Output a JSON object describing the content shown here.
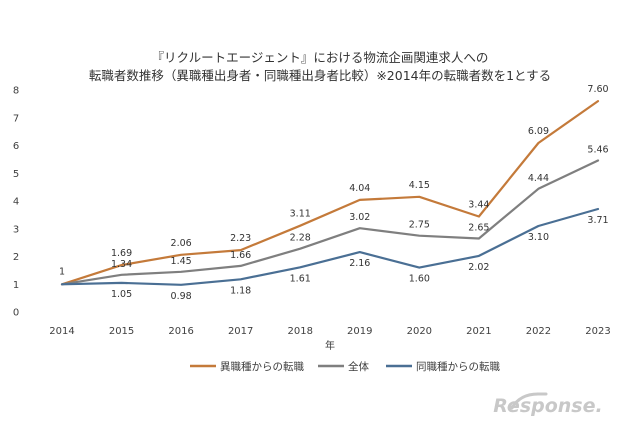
{
  "chart_data": {
    "type": "line",
    "title_lines": [
      "『リクルートエージェント』における物流企画関連求人への",
      "転職者数推移（異職種出身者・同職種出身者比較）※2014年の転職者数を1とする"
    ],
    "xlabel": "年",
    "ylabel": "",
    "x": [
      "2014",
      "2015",
      "2016",
      "2017",
      "2018",
      "2019",
      "2020",
      "2021",
      "2022",
      "2023"
    ],
    "ylim": [
      0,
      8
    ],
    "yticks": [
      "0",
      "1",
      "2",
      "3",
      "4",
      "5",
      "6",
      "7",
      "8"
    ],
    "grid": false,
    "legend_position": "bottom",
    "series": [
      {
        "name": "異職種からの転職",
        "color": "#C47A3A",
        "values": [
          1,
          1.69,
          2.06,
          2.23,
          3.11,
          4.04,
          4.15,
          3.44,
          6.09,
          7.6
        ],
        "labels": [
          "1",
          "1.69",
          "2.06",
          "2.23",
          "3.11",
          "4.04",
          "4.15",
          "3.44",
          "6.09",
          "7.60"
        ]
      },
      {
        "name": "全体",
        "color": "#7F7F7F",
        "values": [
          1,
          1.34,
          1.45,
          1.66,
          2.28,
          3.02,
          2.75,
          2.65,
          4.44,
          5.46
        ],
        "labels": [
          "",
          "1.34",
          "1.45",
          "1.66",
          "2.28",
          "3.02",
          "2.75",
          "2.65",
          "4.44",
          "5.46"
        ]
      },
      {
        "name": "同職種からの転職",
        "color": "#4A6F94",
        "values": [
          1,
          1.05,
          0.98,
          1.18,
          1.61,
          2.16,
          1.6,
          2.02,
          3.1,
          3.71
        ],
        "labels": [
          "",
          "1.05",
          "0.98",
          "1.18",
          "1.61",
          "2.16",
          "1.60",
          "2.02",
          "3.10",
          "3.71"
        ]
      }
    ]
  },
  "watermark": {
    "text": "Response."
  }
}
